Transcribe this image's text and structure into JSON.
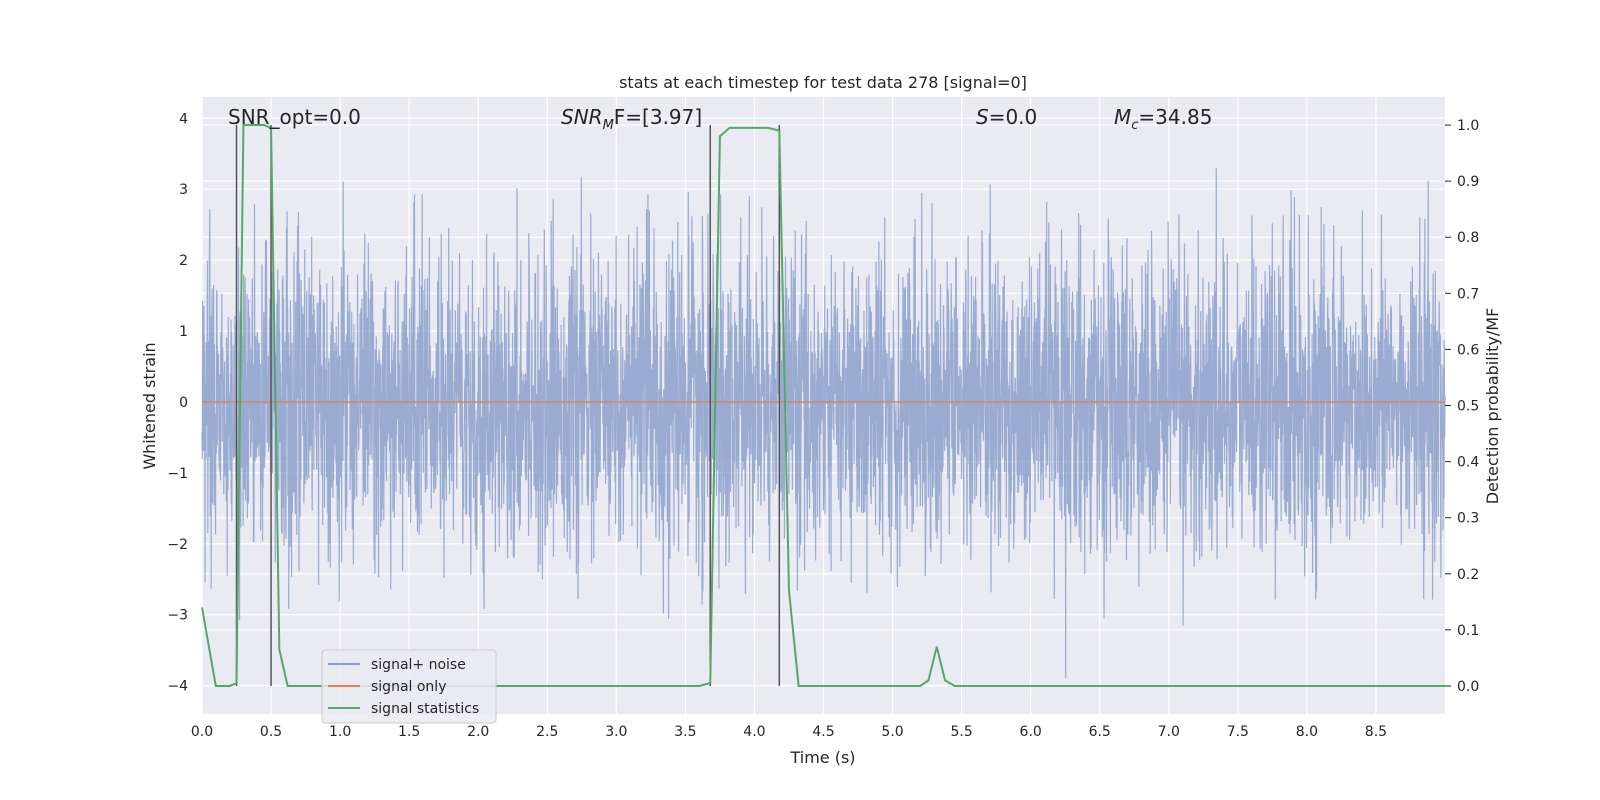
{
  "chart_data": {
    "type": "line",
    "title": "stats at each timestep for test data 278 [signal=0]",
    "xlabel": "Time (s)",
    "ylabel_left": "Whitened strain",
    "ylabel_right": "Detection probability/MF",
    "xlim": [
      0.0,
      9.0
    ],
    "ylim_left": [
      -4.4,
      4.3
    ],
    "ylim_right": [
      -0.05,
      1.05
    ],
    "x_ticks": [
      "0.0",
      "0.5",
      "1.0",
      "1.5",
      "2.0",
      "2.5",
      "3.0",
      "3.5",
      "4.0",
      "4.5",
      "5.0",
      "5.5",
      "6.0",
      "6.5",
      "7.0",
      "7.5",
      "8.0",
      "8.5"
    ],
    "y_ticks_left": [
      "4",
      "3",
      "2",
      "1",
      "0",
      "−1",
      "−2",
      "−3",
      "−4"
    ],
    "y_ticks_right": [
      "1.0",
      "0.9",
      "0.8",
      "0.7",
      "0.6",
      "0.5",
      "0.4",
      "0.3",
      "0.2",
      "0.1",
      "0.0"
    ],
    "grid": true,
    "legend_position": "lower-left",
    "colors": {
      "background": "#eaeaf2",
      "grid": "#ffffff",
      "noise": "#8ca0cc",
      "signal_only": "#dd8452",
      "statistics": "#55a868",
      "vline": "#555555"
    },
    "annotations": {
      "snr_opt": "SNR_opt=0.0",
      "snr_mf_main": "SNR",
      "snr_mf_sub": "M",
      "snr_mf_rest": "F=[3.97]",
      "s_sym": "S",
      "s_val": "=0.0",
      "mc_sym": "M",
      "mc_sub": "c",
      "mc_val": "=34.85"
    },
    "vertical_lines_x": [
      0.25,
      0.5,
      3.68,
      4.18
    ],
    "series": [
      {
        "name": "signal+ noise",
        "description_range": [
          -3.9,
          3.9
        ],
        "samples": 4500
      },
      {
        "name": "signal only",
        "x": [
          0.0,
          9.0
        ],
        "y": [
          0.0,
          0.0
        ]
      },
      {
        "name": "signal statistics",
        "axis": "right",
        "x": [
          0.0,
          0.05,
          0.1,
          0.2,
          0.25,
          0.3,
          0.35,
          0.45,
          0.5,
          0.56,
          0.62,
          0.7,
          1.0,
          2.0,
          3.0,
          3.6,
          3.68,
          3.75,
          3.82,
          3.9,
          4.0,
          4.1,
          4.18,
          4.25,
          4.32,
          4.4,
          5.0,
          5.2,
          5.26,
          5.32,
          5.38,
          5.45,
          5.6,
          6.0,
          6.6,
          7.0,
          8.0,
          9.0
        ],
        "y": [
          0.14,
          0.07,
          0.0,
          0.0,
          0.005,
          1.0,
          1.0,
          1.0,
          0.995,
          0.065,
          0.0,
          0.0,
          0.0,
          0.0,
          0.0,
          0.0,
          0.005,
          0.98,
          0.995,
          0.995,
          0.995,
          0.995,
          0.99,
          0.17,
          0.0,
          0.0,
          0.0,
          0.0,
          0.01,
          0.07,
          0.01,
          0.0,
          0.0,
          0.0,
          0.0,
          0.0,
          0.0,
          0.0
        ]
      }
    ]
  }
}
